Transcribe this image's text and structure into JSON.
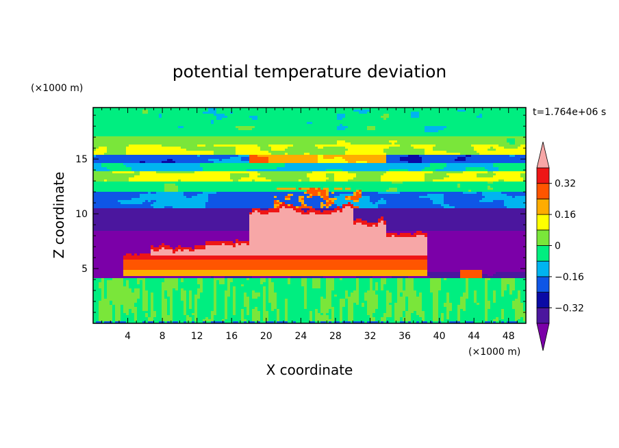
{
  "chart_data": {
    "type": "heatmap",
    "title": "potential temperature deviation",
    "xlabel": "X coordinate",
    "ylabel": "Z coordinate",
    "x_unit": "(×1000 m)",
    "y_unit": "(×1000 m)",
    "time_label": "t=1.764e+06 s",
    "xlim": [
      0,
      50
    ],
    "ylim": [
      0,
      19.7
    ],
    "x_ticks": [
      4,
      8,
      12,
      16,
      20,
      24,
      28,
      32,
      36,
      40,
      44,
      48
    ],
    "y_ticks": [
      5,
      10,
      15
    ],
    "colorbar": {
      "colors": [
        "#7b00a8",
        "#4b169e",
        "#0a0aa5",
        "#0f56e6",
        "#00b4f0",
        "#00ee80",
        "#7ae63a",
        "#ffff00",
        "#ffac00",
        "#ff5500",
        "#ee1616",
        "#f7a7a7"
      ],
      "levels": [
        -0.4,
        -0.32,
        -0.24,
        -0.16,
        -0.08,
        0,
        0.08,
        0.16,
        0.24,
        0.32,
        0.4
      ],
      "labels": [
        "0.32",
        "0.16",
        "0",
        "−0.16",
        "−0.32"
      ],
      "label_values": [
        0.32,
        0.16,
        0,
        -0.16,
        -0.32
      ]
    }
  }
}
